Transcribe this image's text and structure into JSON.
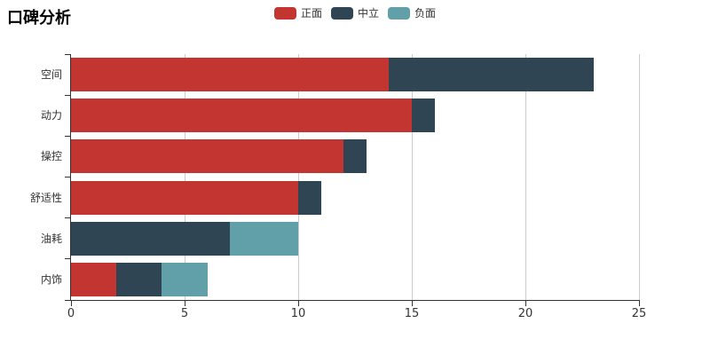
{
  "title": "口碑分析",
  "legend": {
    "items": [
      {
        "label": "正面",
        "color": "#c23531"
      },
      {
        "label": "中立",
        "color": "#2f4554"
      },
      {
        "label": "负面",
        "color": "#61a0a8"
      }
    ]
  },
  "chart_data": {
    "type": "bar",
    "orientation": "horizontal",
    "stacked": true,
    "title": "口碑分析",
    "categories": [
      "空间",
      "动力",
      "操控",
      "舒适性",
      "油耗",
      "内饰"
    ],
    "series": [
      {
        "name": "正面",
        "color": "#c23531",
        "values": [
          14,
          15,
          12,
          10,
          0,
          2
        ]
      },
      {
        "name": "中立",
        "color": "#2f4554",
        "values": [
          9,
          1,
          1,
          1,
          7,
          2
        ]
      },
      {
        "name": "负面",
        "color": "#61a0a8",
        "values": [
          0,
          0,
          0,
          0,
          3,
          2
        ]
      }
    ],
    "totals": [
      23,
      16,
      13,
      11,
      10,
      6
    ],
    "xlabel": "",
    "ylabel": "",
    "xlim": [
      0,
      25
    ],
    "x_ticks": [
      0,
      5,
      10,
      15,
      20,
      25
    ],
    "grid": true,
    "legend_position": "top-center",
    "category_order": "top-to-bottom"
  },
  "colors": {
    "background": "#ffffff",
    "axis": "#333333",
    "gridline": "#cccccc",
    "text": "#333333"
  }
}
